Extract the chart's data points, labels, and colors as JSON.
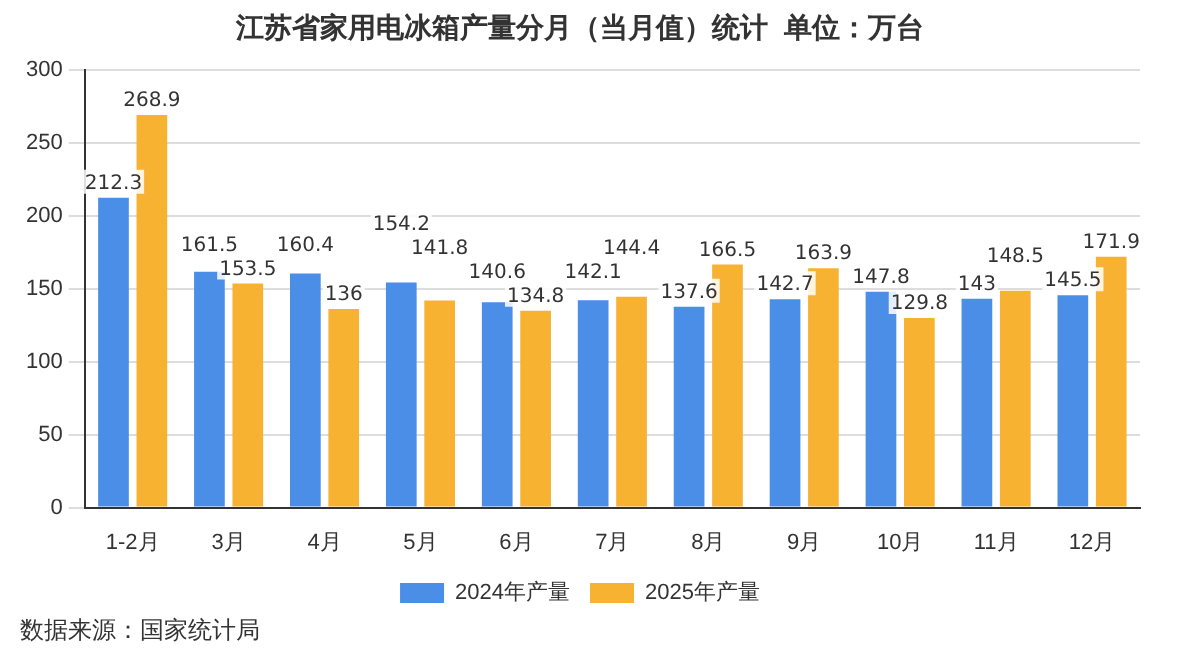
{
  "chart_data": {
    "type": "bar",
    "title": "江苏省家用电冰箱产量分月（当月值）统计  单位：万台",
    "categories": [
      "1-2月",
      "3月",
      "4月",
      "5月",
      "6月",
      "7月",
      "8月",
      "9月",
      "10月",
      "11月",
      "12月"
    ],
    "series": [
      {
        "name": "2024年产量",
        "color": "#4a8ee8",
        "values": [
          212.3,
          161.5,
          160.4,
          154.2,
          140.6,
          142.1,
          137.6,
          142.7,
          147.8,
          143,
          145.5
        ]
      },
      {
        "name": "2025年产量",
        "color": "#f8b232",
        "values": [
          268.9,
          153.5,
          136,
          141.8,
          134.8,
          144.4,
          166.5,
          163.9,
          129.8,
          148.5,
          171.9
        ]
      }
    ],
    "ylim": [
      0,
      300
    ],
    "yticks": [
      0,
      50,
      100,
      150,
      200,
      250,
      300
    ],
    "grid": "y",
    "legend": "bottom",
    "data_labels": true,
    "annotations": [
      "数据来源：国家统计局"
    ]
  }
}
